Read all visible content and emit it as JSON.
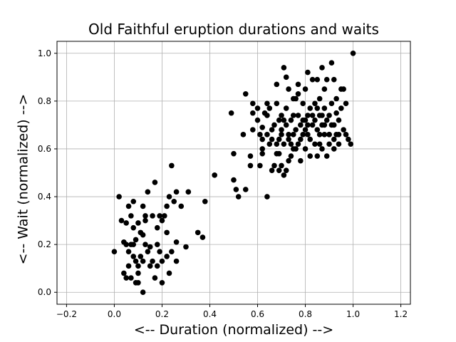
{
  "chart_data": {
    "type": "scatter",
    "title": "Old Faithful eruption durations and waits",
    "xlabel": "<-- Duration (normalized) -->",
    "ylabel": "<-- Wait (normalized) -->",
    "xlim": [
      -0.24,
      1.24
    ],
    "ylim": [
      -0.05,
      1.05
    ],
    "xticks": [
      -0.2,
      0.0,
      0.2,
      0.4,
      0.6,
      0.8,
      1.0,
      1.2
    ],
    "yticks": [
      0.0,
      0.2,
      0.4,
      0.6,
      0.8,
      1.0
    ],
    "xtick_labels": [
      "−0.2",
      "0.0",
      "0.2",
      "0.4",
      "0.6",
      "0.8",
      "1.0",
      "1.2"
    ],
    "ytick_labels": [
      "0.0",
      "0.2",
      "0.4",
      "0.6",
      "0.8",
      "1.0"
    ],
    "grid": true,
    "marker_color": "#000000",
    "points": [
      [
        0.0,
        0.17
      ],
      [
        0.02,
        0.4
      ],
      [
        0.03,
        0.3
      ],
      [
        0.04,
        0.21
      ],
      [
        0.04,
        0.08
      ],
      [
        0.05,
        0.06
      ],
      [
        0.05,
        0.2
      ],
      [
        0.05,
        0.29
      ],
      [
        0.06,
        0.36
      ],
      [
        0.06,
        0.17
      ],
      [
        0.06,
        0.11
      ],
      [
        0.07,
        0.32
      ],
      [
        0.07,
        0.2
      ],
      [
        0.07,
        0.06
      ],
      [
        0.08,
        0.38
      ],
      [
        0.08,
        0.27
      ],
      [
        0.08,
        0.15
      ],
      [
        0.08,
        0.2
      ],
      [
        0.09,
        0.04
      ],
      [
        0.09,
        0.13
      ],
      [
        0.09,
        0.22
      ],
      [
        0.1,
        0.08
      ],
      [
        0.1,
        0.29
      ],
      [
        0.1,
        0.11
      ],
      [
        0.1,
        0.04
      ],
      [
        0.11,
        0.25
      ],
      [
        0.11,
        0.15
      ],
      [
        0.12,
        0.24
      ],
      [
        0.12,
        0.36
      ],
      [
        0.12,
        0.0
      ],
      [
        0.12,
        0.13
      ],
      [
        0.13,
        0.3
      ],
      [
        0.13,
        0.2
      ],
      [
        0.13,
        0.32
      ],
      [
        0.14,
        0.17
      ],
      [
        0.14,
        0.42
      ],
      [
        0.15,
        0.19
      ],
      [
        0.15,
        0.11
      ],
      [
        0.16,
        0.32
      ],
      [
        0.16,
        0.13
      ],
      [
        0.17,
        0.06
      ],
      [
        0.17,
        0.46
      ],
      [
        0.18,
        0.2
      ],
      [
        0.18,
        0.11
      ],
      [
        0.18,
        0.27
      ],
      [
        0.19,
        0.17
      ],
      [
        0.19,
        0.32
      ],
      [
        0.2,
        0.04
      ],
      [
        0.2,
        0.3
      ],
      [
        0.2,
        0.13
      ],
      [
        0.21,
        0.32
      ],
      [
        0.22,
        0.36
      ],
      [
        0.22,
        0.15
      ],
      [
        0.22,
        0.25
      ],
      [
        0.23,
        0.08
      ],
      [
        0.23,
        0.4
      ],
      [
        0.24,
        0.53
      ],
      [
        0.24,
        0.17
      ],
      [
        0.25,
        0.38
      ],
      [
        0.26,
        0.42
      ],
      [
        0.26,
        0.13
      ],
      [
        0.26,
        0.21
      ],
      [
        0.28,
        0.36
      ],
      [
        0.3,
        0.19
      ],
      [
        0.31,
        0.42
      ],
      [
        0.35,
        0.25
      ],
      [
        0.37,
        0.23
      ],
      [
        0.38,
        0.38
      ],
      [
        0.42,
        0.49
      ],
      [
        0.49,
        0.75
      ],
      [
        0.5,
        0.47
      ],
      [
        0.5,
        0.58
      ],
      [
        0.51,
        0.43
      ],
      [
        0.52,
        0.4
      ],
      [
        0.54,
        0.66
      ],
      [
        0.55,
        0.43
      ],
      [
        0.55,
        0.83
      ],
      [
        0.57,
        0.53
      ],
      [
        0.57,
        0.57
      ],
      [
        0.58,
        0.68
      ],
      [
        0.58,
        0.75
      ],
      [
        0.58,
        0.79
      ],
      [
        0.6,
        0.72
      ],
      [
        0.61,
        0.53
      ],
      [
        0.61,
        0.66
      ],
      [
        0.62,
        0.58
      ],
      [
        0.62,
        0.69
      ],
      [
        0.62,
        0.6
      ],
      [
        0.63,
        0.75
      ],
      [
        0.64,
        0.4
      ],
      [
        0.64,
        0.66
      ],
      [
        0.64,
        0.74
      ],
      [
        0.65,
        0.62
      ],
      [
        0.65,
        0.77
      ],
      [
        0.66,
        0.51
      ],
      [
        0.66,
        0.64
      ],
      [
        0.67,
        0.53
      ],
      [
        0.67,
        0.7
      ],
      [
        0.68,
        0.87
      ],
      [
        0.68,
        0.62
      ],
      [
        0.68,
        0.79
      ],
      [
        0.69,
        0.72
      ],
      [
        0.69,
        0.51
      ],
      [
        0.69,
        0.58
      ],
      [
        0.7,
        0.66
      ],
      [
        0.7,
        0.74
      ],
      [
        0.7,
        0.68
      ],
      [
        0.7,
        0.53
      ],
      [
        0.71,
        0.49
      ],
      [
        0.71,
        0.94
      ],
      [
        0.71,
        0.62
      ],
      [
        0.72,
        0.51
      ],
      [
        0.72,
        0.77
      ],
      [
        0.72,
        0.7
      ],
      [
        0.72,
        0.9
      ],
      [
        0.73,
        0.55
      ],
      [
        0.73,
        0.64
      ],
      [
        0.73,
        0.85
      ],
      [
        0.74,
        0.72
      ],
      [
        0.74,
        0.57
      ],
      [
        0.75,
        0.66
      ],
      [
        0.75,
        0.74
      ],
      [
        0.75,
        0.6
      ],
      [
        0.76,
        0.68
      ],
      [
        0.76,
        0.81
      ],
      [
        0.77,
        0.62
      ],
      [
        0.77,
        0.74
      ],
      [
        0.77,
        0.87
      ],
      [
        0.78,
        0.7
      ],
      [
        0.78,
        0.64
      ],
      [
        0.78,
        0.55
      ],
      [
        0.79,
        0.72
      ],
      [
        0.79,
        0.79
      ],
      [
        0.8,
        0.6
      ],
      [
        0.8,
        0.85
      ],
      [
        0.8,
        0.68
      ],
      [
        0.81,
        0.74
      ],
      [
        0.81,
        0.66
      ],
      [
        0.81,
        0.92
      ],
      [
        0.82,
        0.57
      ],
      [
        0.82,
        0.64
      ],
      [
        0.82,
        0.77
      ],
      [
        0.83,
        0.7
      ],
      [
        0.83,
        0.89
      ],
      [
        0.84,
        0.72
      ],
      [
        0.84,
        0.62
      ],
      [
        0.84,
        0.79
      ],
      [
        0.85,
        0.68
      ],
      [
        0.85,
        0.57
      ],
      [
        0.85,
        0.89
      ],
      [
        0.86,
        0.74
      ],
      [
        0.86,
        0.66
      ],
      [
        0.86,
        0.81
      ],
      [
        0.87,
        0.94
      ],
      [
        0.87,
        0.7
      ],
      [
        0.87,
        0.6
      ],
      [
        0.88,
        0.77
      ],
      [
        0.88,
        0.66
      ],
      [
        0.88,
        0.85
      ],
      [
        0.89,
        0.72
      ],
      [
        0.89,
        0.89
      ],
      [
        0.89,
        0.57
      ],
      [
        0.9,
        0.62
      ],
      [
        0.9,
        0.74
      ],
      [
        0.9,
        0.66
      ],
      [
        0.91,
        0.79
      ],
      [
        0.91,
        0.96
      ],
      [
        0.91,
        0.7
      ],
      [
        0.92,
        0.6
      ],
      [
        0.92,
        0.89
      ],
      [
        0.92,
        0.64
      ],
      [
        0.93,
        0.75
      ],
      [
        0.93,
        0.81
      ],
      [
        0.93,
        0.66
      ],
      [
        0.94,
        0.72
      ],
      [
        0.94,
        0.62
      ],
      [
        0.95,
        0.77
      ],
      [
        0.95,
        0.85
      ],
      [
        0.96,
        0.68
      ],
      [
        0.96,
        0.85
      ],
      [
        0.97,
        0.66
      ],
      [
        0.97,
        0.79
      ],
      [
        0.98,
        0.64
      ],
      [
        0.99,
        0.62
      ],
      [
        1.0,
        1.0
      ],
      [
        0.64,
        0.79
      ],
      [
        0.6,
        0.77
      ],
      [
        0.66,
        0.68
      ],
      [
        0.74,
        0.62
      ],
      [
        0.79,
        0.66
      ],
      [
        0.83,
        0.74
      ],
      [
        0.88,
        0.7
      ],
      [
        0.68,
        0.58
      ],
      [
        0.71,
        0.72
      ],
      [
        0.76,
        0.6
      ],
      [
        0.81,
        0.7
      ],
      [
        0.86,
        0.62
      ],
      [
        0.92,
        0.7
      ],
      [
        0.62,
        0.64
      ],
      [
        0.77,
        0.83
      ],
      [
        0.85,
        0.77
      ],
      [
        0.73,
        0.66
      ],
      [
        0.8,
        0.72
      ],
      [
        0.9,
        0.66
      ],
      [
        0.87,
        0.74
      ],
      [
        0.75,
        0.81
      ],
      [
        0.69,
        0.64
      ],
      [
        0.94,
        0.66
      ]
    ]
  }
}
